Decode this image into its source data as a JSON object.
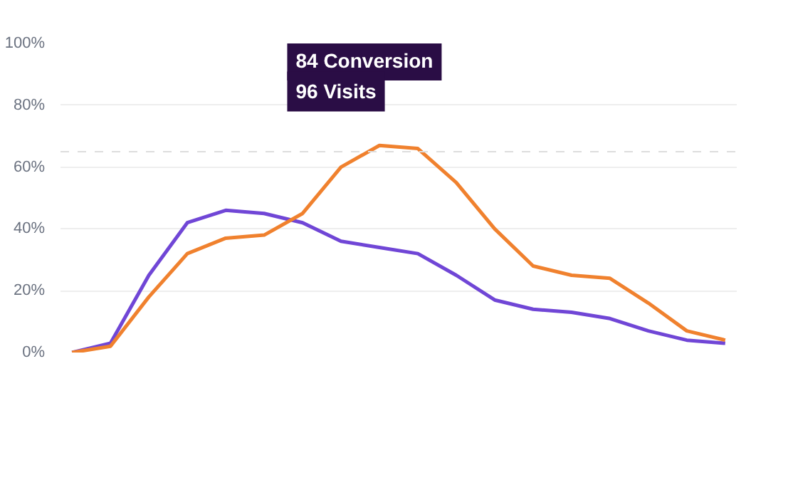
{
  "chart_data": {
    "type": "line",
    "categories": [
      null,
      null,
      null,
      null,
      null,
      null,
      null,
      null,
      null,
      null,
      null,
      null,
      null,
      null,
      null,
      null,
      null,
      null
    ],
    "series": [
      {
        "color": "#7046d6",
        "values": [
          0,
          3,
          25,
          42,
          46,
          45,
          42,
          36,
          34,
          32,
          25,
          17,
          14,
          13,
          11,
          7,
          4,
          3
        ]
      },
      {
        "color": "#f0812e",
        "values": [
          0,
          2,
          18,
          32,
          37,
          38,
          45,
          60,
          67,
          66,
          55,
          40,
          28,
          25,
          24,
          16,
          7,
          4
        ]
      }
    ],
    "ylim": [
      0,
      100
    ],
    "yticks": [
      {
        "value": 0,
        "label": "0%"
      },
      {
        "value": 20,
        "label": "20%"
      },
      {
        "value": 40,
        "label": "40%"
      },
      {
        "value": 60,
        "label": "60%"
      },
      {
        "value": 80,
        "label": "80%"
      },
      {
        "value": 100,
        "label": "100%"
      }
    ],
    "grid": "y",
    "tick_labels": "y",
    "line_style": "solid",
    "ref_lines": [
      {
        "axis": "y",
        "value": 65,
        "color": "#dddddd",
        "line_style": "dashed"
      }
    ],
    "annotations": [
      "84 Conversion",
      "96 Visits"
    ]
  }
}
